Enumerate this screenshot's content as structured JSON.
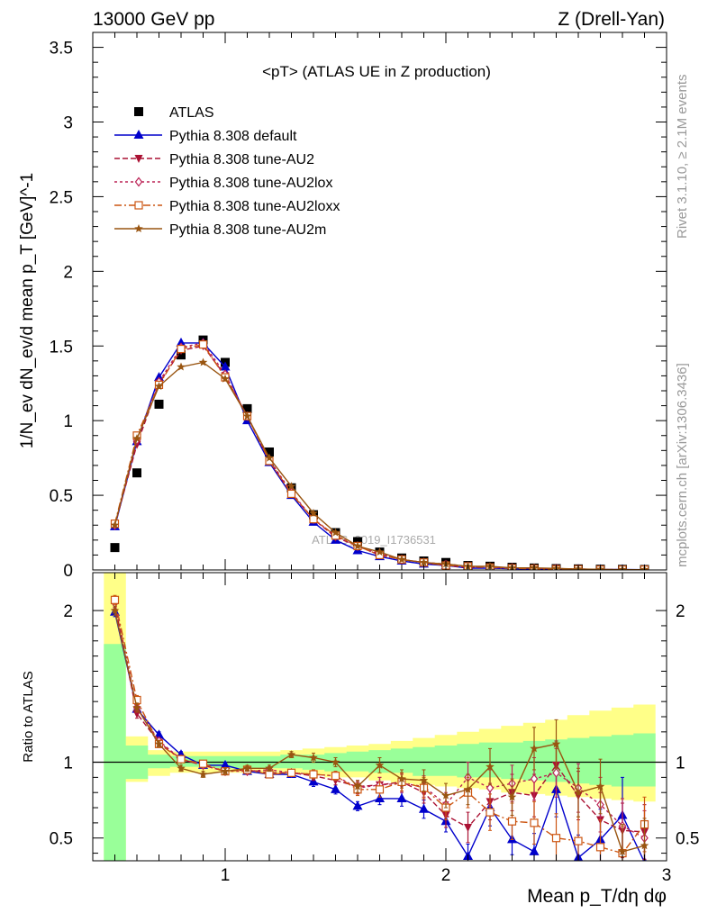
{
  "header": {
    "left": "13000 GeV pp",
    "right": "Z (Drell-Yan)"
  },
  "side_labels": {
    "rivet": "Rivet 3.1.10, ≥ 2.1M events",
    "mcplots": "mcplots.cern.ch [arXiv:1306.3436]"
  },
  "watermark": "ATLAS_2019_I1736531",
  "colors": {
    "data": "#000000",
    "default": "#0000cc",
    "au2": "#aa1133",
    "au2lox": "#bb2255",
    "au2loxx": "#cc5511",
    "au2m": "#995511",
    "band_inner": "#99ff99",
    "band_outer": "#ffff88"
  },
  "chart_data": [
    {
      "type": "line",
      "title": "<pT> (ATLAS UE in Z production)",
      "ylabel": "1/N_ev dN_ev/d mean p_T [GeV]^-1",
      "xlim": [
        0.4,
        3.0
      ],
      "ylim": [
        0,
        3.6
      ],
      "yticks": [
        "0",
        "0.5",
        "1",
        "1.5",
        "2",
        "2.5",
        "3",
        "3.5"
      ],
      "legend_position": "top-left",
      "x": [
        0.5,
        0.6,
        0.7,
        0.8,
        0.9,
        1.0,
        1.1,
        1.2,
        1.3,
        1.4,
        1.5,
        1.6,
        1.7,
        1.8,
        1.9,
        2.0,
        2.1,
        2.2,
        2.3,
        2.4,
        2.5,
        2.6,
        2.7,
        2.8,
        2.9
      ],
      "series": [
        {
          "name": "ATLAS",
          "key": "data",
          "marker": "square",
          "values": [
            0.15,
            0.65,
            1.11,
            1.44,
            1.54,
            1.39,
            1.08,
            0.79,
            0.55,
            0.37,
            0.25,
            0.19,
            0.12,
            0.08,
            0.06,
            0.05,
            0.03,
            0.025,
            0.018,
            0.013,
            0.009,
            0.007,
            0.005,
            0.004,
            0.003
          ]
        },
        {
          "name": "Pythia 8.308 default",
          "key": "default",
          "marker": "triangle-up",
          "dash": "",
          "values": [
            0.29,
            0.86,
            1.29,
            1.52,
            1.52,
            1.36,
            1.0,
            0.72,
            0.5,
            0.32,
            0.2,
            0.13,
            0.09,
            0.06,
            0.04,
            0.03,
            0.012,
            0.012,
            0.009,
            0.005,
            0.007,
            0.004,
            0.003,
            0.003,
            0.002
          ]
        },
        {
          "name": "Pythia 8.308 tune-AU2",
          "key": "au2",
          "marker": "triangle-down",
          "dash": "6,3",
          "values": [
            0.3,
            0.84,
            1.25,
            1.47,
            1.5,
            1.3,
            1.03,
            0.73,
            0.51,
            0.34,
            0.22,
            0.16,
            0.1,
            0.07,
            0.05,
            0.03,
            0.017,
            0.019,
            0.014,
            0.01,
            0.009,
            0.006,
            0.003,
            0.002,
            0.002
          ]
        },
        {
          "name": "Pythia 8.308 tune-AU2lox",
          "key": "au2lox",
          "marker": "diamond",
          "dash": "3,3",
          "values": [
            0.3,
            0.87,
            1.26,
            1.49,
            1.52,
            1.31,
            1.03,
            0.74,
            0.52,
            0.34,
            0.23,
            0.16,
            0.11,
            0.07,
            0.05,
            0.04,
            0.024,
            0.016,
            0.014,
            0.011,
            0.009,
            0.006,
            0.003,
            0.002,
            0.002
          ]
        },
        {
          "name": "Pythia 8.308 tune-AU2loxx",
          "key": "au2loxx",
          "marker": "square-open",
          "dash": "8,3,2,3",
          "values": [
            0.31,
            0.9,
            1.24,
            1.48,
            1.51,
            1.29,
            1.03,
            0.73,
            0.51,
            0.34,
            0.23,
            0.16,
            0.1,
            0.07,
            0.05,
            0.03,
            0.024,
            0.016,
            0.011,
            0.008,
            0.004,
            0.004,
            0.002,
            0.002,
            0.002
          ]
        },
        {
          "name": "Pythia 8.308 tune-AU2m",
          "key": "au2m",
          "marker": "star",
          "dash": "",
          "values": [
            0.3,
            0.88,
            1.23,
            1.36,
            1.39,
            1.28,
            1.03,
            0.75,
            0.56,
            0.38,
            0.25,
            0.16,
            0.12,
            0.07,
            0.05,
            0.04,
            0.024,
            0.024,
            0.014,
            0.014,
            0.01,
            0.006,
            0.004,
            0.002,
            0.002
          ]
        }
      ]
    },
    {
      "type": "line",
      "ylabel": "Ratio to ATLAS",
      "xlabel": "Mean p_T/dη dφ",
      "xlim": [
        0.4,
        3.0
      ],
      "ylim": [
        0.35,
        2.25
      ],
      "yticks": [
        "0.5",
        "1",
        "2"
      ],
      "xticks": [
        "1",
        "2",
        "3"
      ],
      "x": [
        0.5,
        0.6,
        0.7,
        0.8,
        0.9,
        1.0,
        1.1,
        1.2,
        1.3,
        1.4,
        1.5,
        1.6,
        1.7,
        1.8,
        1.9,
        2.0,
        2.1,
        2.2,
        2.3,
        2.4,
        2.5,
        2.6,
        2.7,
        2.8,
        2.9
      ],
      "band_inner": {
        "lo": [
          0.3,
          0.89,
          0.96,
          0.97,
          0.97,
          0.96,
          0.96,
          0.96,
          0.96,
          0.95,
          0.94,
          0.94,
          0.93,
          0.93,
          0.91,
          0.91,
          0.9,
          0.9,
          0.89,
          0.88,
          0.87,
          0.86,
          0.85,
          0.84,
          0.84
        ],
        "hi": [
          1.78,
          1.11,
          1.05,
          1.04,
          1.04,
          1.04,
          1.04,
          1.04,
          1.05,
          1.05,
          1.06,
          1.07,
          1.08,
          1.09,
          1.1,
          1.11,
          1.12,
          1.13,
          1.13,
          1.14,
          1.15,
          1.16,
          1.17,
          1.18,
          1.19
        ]
      },
      "band_outer": {
        "lo": [
          0.3,
          0.87,
          0.91,
          0.93,
          0.93,
          0.93,
          0.93,
          0.93,
          0.92,
          0.92,
          0.9,
          0.9,
          0.88,
          0.86,
          0.85,
          0.84,
          0.83,
          0.82,
          0.8,
          0.79,
          0.78,
          0.77,
          0.76,
          0.75,
          0.74
        ],
        "hi": [
          2.3,
          1.17,
          1.08,
          1.07,
          1.07,
          1.07,
          1.07,
          1.07,
          1.08,
          1.09,
          1.1,
          1.11,
          1.12,
          1.14,
          1.16,
          1.18,
          1.2,
          1.22,
          1.24,
          1.26,
          1.28,
          1.31,
          1.34,
          1.36,
          1.38
        ]
      },
      "series": [
        {
          "key": "default",
          "marker": "triangle-up",
          "dash": "",
          "values": [
            1.99,
            1.35,
            1.18,
            1.05,
            0.98,
            0.98,
            0.94,
            0.92,
            0.92,
            0.87,
            0.82,
            0.71,
            0.76,
            0.76,
            0.69,
            0.61,
            0.38,
            0.7,
            0.49,
            0.41,
            0.82,
            0.37,
            0.49,
            0.65,
            0.34
          ],
          "err": [
            0.03,
            0.03,
            0.02,
            0.02,
            0.02,
            0.02,
            0.02,
            0.02,
            0.02,
            0.03,
            0.03,
            0.03,
            0.04,
            0.05,
            0.06,
            0.07,
            0.08,
            0.12,
            0.1,
            0.12,
            0.18,
            0.15,
            0.2,
            0.25,
            0.2
          ]
        },
        {
          "key": "au2",
          "marker": "triangle-down",
          "dash": "6,3",
          "values": [
            2.04,
            1.32,
            1.13,
            1.02,
            0.98,
            0.94,
            0.95,
            0.93,
            0.93,
            0.91,
            0.88,
            0.84,
            0.85,
            0.87,
            0.8,
            0.65,
            0.57,
            0.74,
            0.8,
            0.78,
            0.98,
            0.78,
            0.62,
            0.55,
            0.54
          ],
          "err": [
            0.03,
            0.03,
            0.02,
            0.02,
            0.02,
            0.02,
            0.02,
            0.02,
            0.02,
            0.03,
            0.03,
            0.04,
            0.05,
            0.06,
            0.07,
            0.08,
            0.1,
            0.12,
            0.12,
            0.14,
            0.16,
            0.16,
            0.18,
            0.18,
            0.18
          ]
        },
        {
          "key": "au2lox",
          "marker": "diamond",
          "dash": "3,3",
          "values": [
            2.05,
            1.36,
            1.14,
            1.02,
            0.98,
            0.94,
            0.94,
            0.95,
            0.93,
            0.92,
            0.91,
            0.83,
            0.85,
            0.86,
            0.84,
            0.72,
            0.9,
            0.83,
            0.86,
            0.89,
            0.93,
            0.83,
            0.72,
            0.58,
            0.5
          ],
          "err": [
            0.03,
            0.03,
            0.02,
            0.02,
            0.02,
            0.02,
            0.02,
            0.02,
            0.02,
            0.03,
            0.03,
            0.04,
            0.05,
            0.06,
            0.07,
            0.08,
            0.1,
            0.12,
            0.12,
            0.14,
            0.16,
            0.16,
            0.18,
            0.18,
            0.18
          ]
        },
        {
          "key": "au2loxx",
          "marker": "square-open",
          "dash": "8,3,2,3",
          "values": [
            2.07,
            1.41,
            1.12,
            1.02,
            0.99,
            0.94,
            0.95,
            0.92,
            0.93,
            0.92,
            0.91,
            0.82,
            0.82,
            0.87,
            0.83,
            0.7,
            0.8,
            0.67,
            0.61,
            0.6,
            0.5,
            0.48,
            0.44,
            0.4,
            0.59
          ],
          "err": [
            0.03,
            0.03,
            0.02,
            0.02,
            0.02,
            0.02,
            0.02,
            0.02,
            0.02,
            0.03,
            0.03,
            0.04,
            0.05,
            0.06,
            0.07,
            0.08,
            0.1,
            0.12,
            0.12,
            0.14,
            0.16,
            0.16,
            0.18,
            0.18,
            0.18
          ]
        },
        {
          "key": "au2m",
          "marker": "star",
          "dash": "",
          "values": [
            2.0,
            1.36,
            1.12,
            0.96,
            0.92,
            0.94,
            0.96,
            0.96,
            1.05,
            1.03,
            1.0,
            0.84,
            0.98,
            0.89,
            0.88,
            0.78,
            0.82,
            0.97,
            0.77,
            1.09,
            1.12,
            0.8,
            0.84,
            0.41,
            0.45
          ],
          "err": [
            0.03,
            0.03,
            0.02,
            0.02,
            0.02,
            0.02,
            0.02,
            0.02,
            0.02,
            0.03,
            0.03,
            0.04,
            0.05,
            0.06,
            0.07,
            0.08,
            0.1,
            0.12,
            0.12,
            0.14,
            0.16,
            0.16,
            0.18,
            0.18,
            0.18
          ]
        }
      ]
    }
  ]
}
